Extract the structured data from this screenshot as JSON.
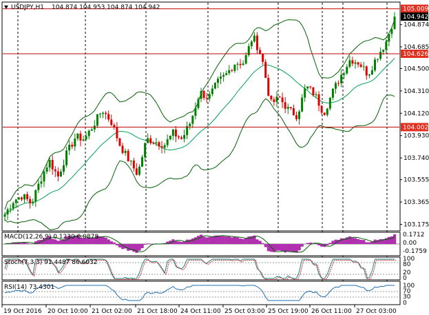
{
  "header": {
    "symbol": "USDJPY,H1",
    "ohlc": "104.874 104.953 104.874 104.942"
  },
  "price_axis": {
    "ticks": [
      "104.874",
      "104.685",
      "104.500",
      "104.310",
      "104.120",
      "103.930",
      "103.740",
      "103.555",
      "103.365",
      "103.175"
    ],
    "tick_values": [
      104.874,
      104.685,
      104.5,
      104.31,
      104.12,
      103.93,
      103.74,
      103.555,
      103.365,
      103.175
    ]
  },
  "levels": [
    {
      "label": "105.009",
      "value": 105.009
    },
    {
      "label": "104.626",
      "value": 104.626
    },
    {
      "label": "104.002",
      "value": 104.002
    }
  ],
  "current_price": {
    "label": "104.942",
    "value": 104.942
  },
  "indicators": {
    "macd": {
      "label": "MACD(12,26,9) 0.1230 0.0878",
      "ticks": [
        "0.1712",
        "0.00",
        "-0.1759"
      ]
    },
    "stoch": {
      "label": "Stoch(7,3,3) 91.4487 86.6032",
      "ticks": [
        "100",
        "80",
        "20",
        "0"
      ]
    },
    "rsi": {
      "label": "RSI(14) 73.4301",
      "ticks": [
        "100",
        "70",
        "30",
        "0"
      ]
    }
  },
  "time_axis": [
    "19 Oct 2016",
    "20 Oct 10:00",
    "21 Oct 02:00",
    "21 Oct 18:00",
    "24 Oct 11:00",
    "25 Oct 03:00",
    "25 Oct 19:00",
    "26 Oct 11:00",
    "27 Oct 03:00"
  ],
  "colors": {
    "bull": "#008000",
    "bear": "#e00000",
    "bands": "#006000",
    "ma": "#00a050",
    "level": "#c00000",
    "histogram": "#b030b0",
    "axis_label_bg": "#e03020"
  },
  "chart_data": {
    "type": "candlestick",
    "x": [
      "19 Oct 2016",
      "20 Oct 10:00",
      "21 Oct 02:00",
      "21 Oct 18:00",
      "24 Oct 11:00",
      "25 Oct 03:00",
      "25 Oct 19:00",
      "26 Oct 11:00",
      "27 Oct 03:00"
    ],
    "close_path": [
      103.26,
      103.38,
      103.42,
      103.35,
      103.55,
      103.72,
      103.58,
      103.78,
      103.92,
      103.9,
      104.02,
      104.15,
      104.05,
      103.85,
      103.72,
      103.6,
      103.9,
      103.88,
      103.85,
      103.95,
      103.9,
      104.05,
      104.3,
      104.25,
      104.38,
      104.45,
      104.55,
      104.55,
      104.78,
      104.6,
      104.2,
      104.25,
      104.15,
      104.1,
      104.35,
      104.28,
      104.12,
      104.3,
      104.45,
      104.58,
      104.55,
      104.45,
      104.6,
      104.72,
      104.94
    ],
    "ylim": [
      103.125,
      105.06
    ]
  }
}
